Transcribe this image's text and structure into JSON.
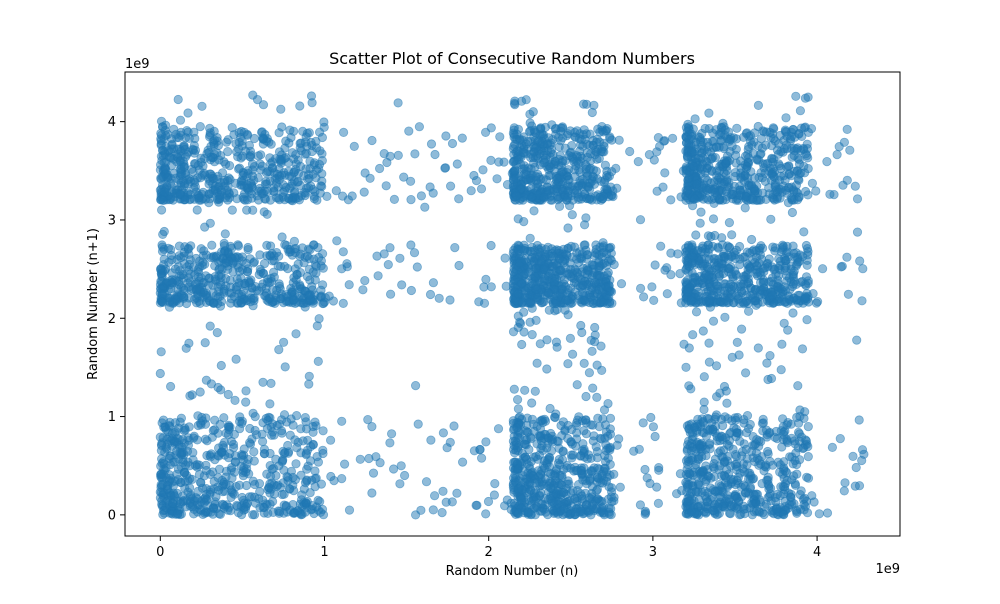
{
  "chart_data": {
    "type": "scatter",
    "title": "Scatter Plot of Consecutive Random Numbers",
    "xlabel": "Random Number (n)",
    "ylabel": "Random Number (n+1)",
    "x_offset_label": "1e9",
    "y_offset_label": "1e9",
    "xlim": [
      -215000000.0,
      4505000000.0
    ],
    "ylim": [
      -215000000.0,
      4505000000.0
    ],
    "xticks": [
      0,
      1000000000,
      2000000000,
      3000000000,
      4000000000
    ],
    "yticks": [
      0,
      1000000000,
      2000000000,
      3000000000,
      4000000000
    ],
    "xtick_labels": [
      "0",
      "1",
      "2",
      "3",
      "4"
    ],
    "ytick_labels": [
      "0",
      "1",
      "2",
      "3",
      "4"
    ],
    "grid": false,
    "legend": false,
    "marker_color": "#1f77b4",
    "marker_alpha": 0.5,
    "n_points_approx": 5000,
    "x_cluster_ranges": [
      [
        0,
        1000000000
      ],
      [
        2150000000,
        2750000000
      ],
      [
        3200000000,
        3950000000
      ]
    ],
    "y_cluster_ranges": [
      [
        0,
        1000000000
      ],
      [
        2150000000,
        2750000000
      ],
      [
        3200000000,
        3950000000
      ]
    ],
    "x_range": [
      0,
      4294967295
    ],
    "y_range": [
      0,
      4294967295
    ]
  }
}
